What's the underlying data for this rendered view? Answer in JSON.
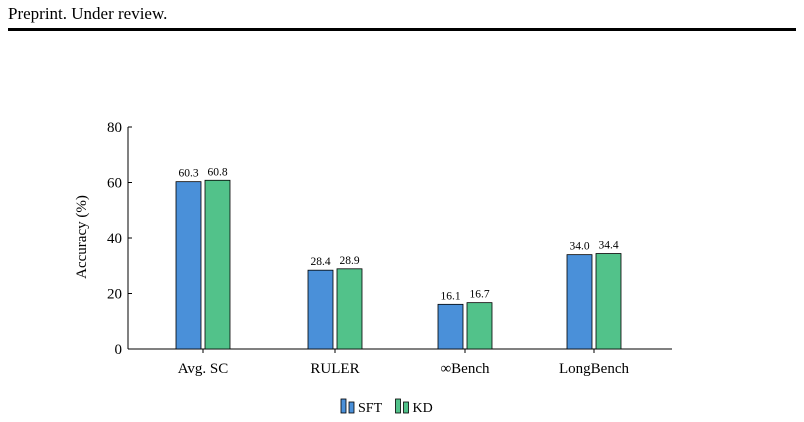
{
  "header": {
    "text": "Preprint. Under review."
  },
  "chart_data": {
    "type": "bar",
    "title": "",
    "xlabel": "",
    "ylabel": "Accuracy (%)",
    "ylim": [
      0,
      80
    ],
    "yticks": [
      0,
      20,
      40,
      60,
      80
    ],
    "categories": [
      "Avg. SC",
      "RULER",
      "∞Bench",
      "LongBench"
    ],
    "series": [
      {
        "name": "SFT",
        "values": [
          60.3,
          28.4,
          16.1,
          34.0
        ],
        "labels": [
          "60.3",
          "28.4",
          "16.1",
          "34.0"
        ],
        "color": "#4a90d9"
      },
      {
        "name": "KD",
        "values": [
          60.8,
          28.9,
          16.7,
          34.4
        ],
        "labels": [
          "60.8",
          "28.9",
          "16.7",
          "34.4"
        ],
        "color": "#52c28a"
      }
    ],
    "grid": false,
    "legend_position": "bottom"
  }
}
